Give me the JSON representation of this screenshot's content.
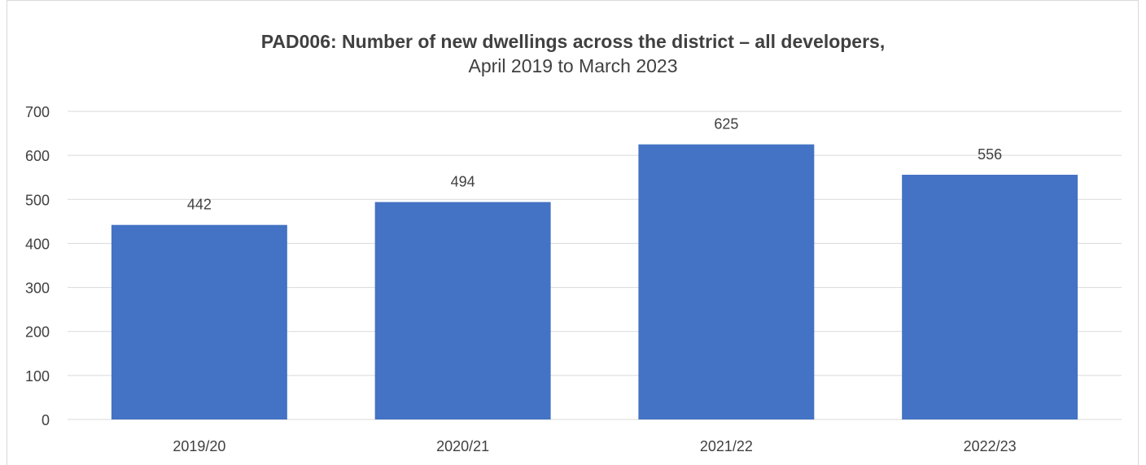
{
  "chart_data": {
    "type": "bar",
    "title": "PAD006: Number of new dwellings across the district – all developers,",
    "subtitle": "April 2019 to March 2023",
    "categories": [
      "2019/20",
      "2020/21",
      "2021/22",
      "2022/23"
    ],
    "values": [
      442,
      494,
      625,
      556
    ],
    "data_labels": [
      "442",
      "494",
      "625",
      "556"
    ],
    "ylim": [
      0,
      700
    ],
    "yticks": [
      0,
      100,
      200,
      300,
      400,
      500,
      600,
      700
    ],
    "xlabel": "",
    "ylabel": "",
    "grid": true,
    "legend": "none",
    "bar_color": "#4472c4",
    "grid_color": "#d9d9d9"
  }
}
